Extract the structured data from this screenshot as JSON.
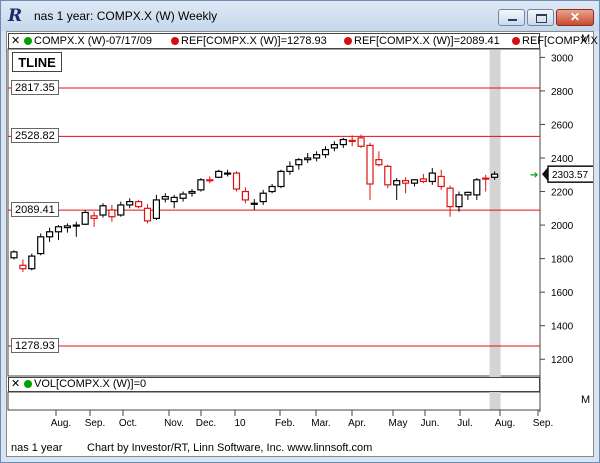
{
  "window": {
    "title": "nas 1 year: COMPX.X (W) Weekly",
    "app_icon": "R"
  },
  "legend": {
    "symbol": "COMPX.X (W)-07/17/09",
    "ref1": "REF[COMPX.X (W)]=1278.93",
    "ref2": "REF[COMPX.X (W)]=2089.41",
    "ref3": "REF[COMPX.X"
  },
  "panel_labels": {
    "tline": "TLINE",
    "m_top": "M",
    "m_bottom": "M"
  },
  "ref_tags": {
    "r2817": "2817.35",
    "r2528": "2528.82",
    "r2089": "2089.41",
    "r1278": "1278.93"
  },
  "last_price": "2303.57",
  "volume_legend": "VOL[COMPX.X (W)]=0",
  "footer": {
    "chart_name": "nas 1 year",
    "credit": "Chart by Investor/RT, Linn Software, Inc. www.linnsoft.com"
  },
  "colors": {
    "up": "#000000",
    "down": "#e01010",
    "reference_line": "#e01010",
    "current_bar": "#d4d4d4",
    "marker": "#00a000"
  },
  "chart_data": {
    "type": "candlestick",
    "title": "nas 1 year: COMPX.X (W) Weekly",
    "ylim": [
      1100,
      3050
    ],
    "y_ticks": [
      1200,
      1400,
      1600,
      1800,
      2000,
      2200,
      2400,
      2600,
      2800,
      3000
    ],
    "x_tick_labels": [
      "Aug.",
      "Sep.",
      "Oct.",
      "Nov.",
      "Dec.",
      "10",
      "Feb.",
      "Mar.",
      "Apr.",
      "May",
      "Jun.",
      "Jul.",
      "Aug.",
      "Sep."
    ],
    "reference_lines": [
      2817.35,
      2528.82,
      2089.41,
      1278.93
    ],
    "last_price": 2303.57,
    "ohlc": [
      [
        1805,
        1850,
        1795,
        1840
      ],
      [
        1760,
        1795,
        1720,
        1740
      ],
      [
        1740,
        1830,
        1730,
        1815
      ],
      [
        1830,
        1950,
        1820,
        1930
      ],
      [
        1930,
        1985,
        1900,
        1960
      ],
      [
        1960,
        2000,
        1910,
        1990
      ],
      [
        1985,
        2010,
        1955,
        1995
      ],
      [
        2000,
        2020,
        1930,
        2000
      ],
      [
        2005,
        2090,
        2000,
        2075
      ],
      [
        2055,
        2080,
        1990,
        2040
      ],
      [
        2060,
        2130,
        2045,
        2115
      ],
      [
        2090,
        2120,
        2020,
        2050
      ],
      [
        2060,
        2140,
        2050,
        2120
      ],
      [
        2120,
        2160,
        2100,
        2140
      ],
      [
        2140,
        2150,
        2100,
        2110
      ],
      [
        2100,
        2125,
        2010,
        2025
      ],
      [
        2040,
        2180,
        2030,
        2150
      ],
      [
        2155,
        2190,
        2135,
        2170
      ],
      [
        2140,
        2180,
        2100,
        2165
      ],
      [
        2160,
        2200,
        2140,
        2185
      ],
      [
        2190,
        2215,
        2170,
        2200
      ],
      [
        2210,
        2280,
        2200,
        2270
      ],
      [
        2270,
        2290,
        2250,
        2265
      ],
      [
        2285,
        2330,
        2280,
        2320
      ],
      [
        2305,
        2330,
        2290,
        2310
      ],
      [
        2310,
        2320,
        2200,
        2215
      ],
      [
        2200,
        2225,
        2130,
        2150
      ],
      [
        2130,
        2155,
        2090,
        2130
      ],
      [
        2140,
        2210,
        2120,
        2190
      ],
      [
        2200,
        2245,
        2190,
        2230
      ],
      [
        2230,
        2330,
        2220,
        2320
      ],
      [
        2320,
        2380,
        2300,
        2350
      ],
      [
        2360,
        2400,
        2330,
        2390
      ],
      [
        2390,
        2430,
        2370,
        2400
      ],
      [
        2400,
        2440,
        2380,
        2420
      ],
      [
        2420,
        2470,
        2400,
        2450
      ],
      [
        2460,
        2500,
        2440,
        2480
      ],
      [
        2480,
        2520,
        2460,
        2510
      ],
      [
        2505,
        2535,
        2470,
        2500
      ],
      [
        2520,
        2540,
        2460,
        2470
      ],
      [
        2475,
        2490,
        2150,
        2245
      ],
      [
        2390,
        2440,
        2350,
        2360
      ],
      [
        2350,
        2360,
        2220,
        2240
      ],
      [
        2240,
        2280,
        2150,
        2265
      ],
      [
        2265,
        2285,
        2190,
        2250
      ],
      [
        2250,
        2275,
        2230,
        2270
      ],
      [
        2275,
        2305,
        2250,
        2260
      ],
      [
        2260,
        2340,
        2240,
        2310
      ],
      [
        2290,
        2330,
        2210,
        2230
      ],
      [
        2220,
        2235,
        2050,
        2110
      ],
      [
        2110,
        2200,
        2080,
        2180
      ],
      [
        2180,
        2200,
        2150,
        2195
      ],
      [
        2180,
        2280,
        2150,
        2270
      ],
      [
        2280,
        2300,
        2200,
        2275
      ],
      [
        2285,
        2320,
        2270,
        2303.57
      ]
    ]
  }
}
